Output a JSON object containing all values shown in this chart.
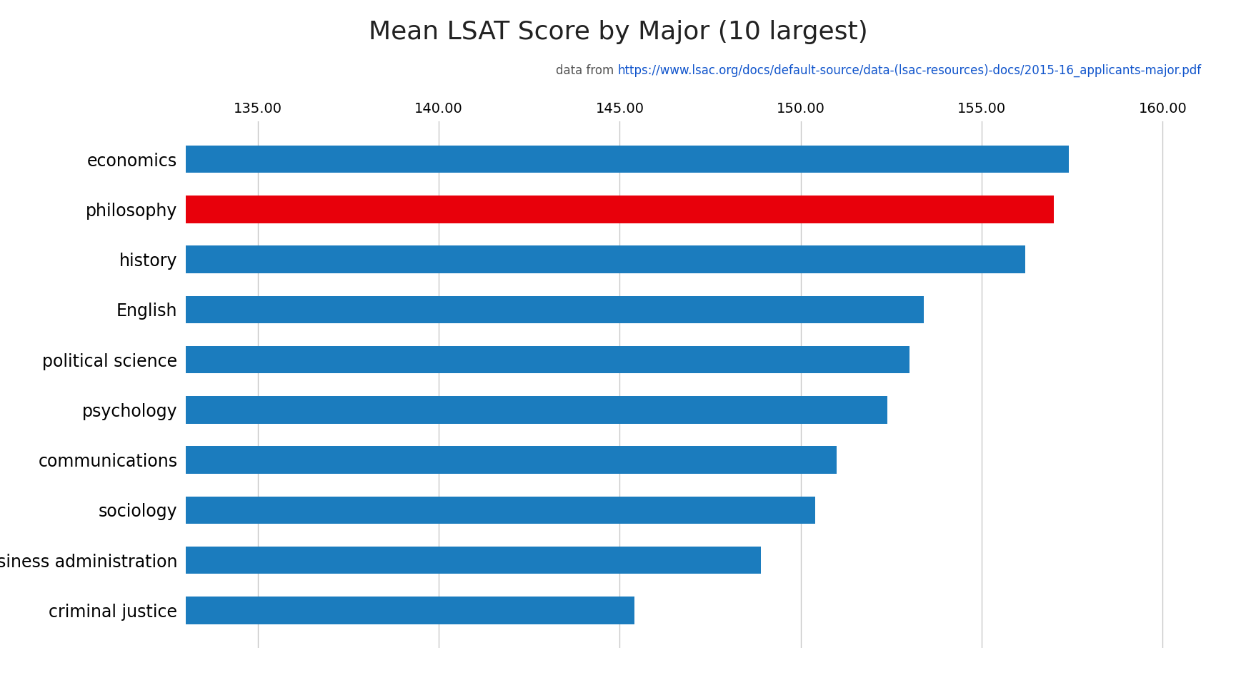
{
  "title": "Mean LSAT Score by Major (10 largest)",
  "subtitle_prefix": "data from ",
  "subtitle_link": "https://www.lsac.org/docs/default-source/data-(lsac-resources)-docs/2015-16_applicants-major.pdf",
  "categories": [
    "economics",
    "philosophy",
    "history",
    "English",
    "political science",
    "psychology",
    "communications",
    "sociology",
    "business administration",
    "criminal justice"
  ],
  "values": [
    157.4,
    157.0,
    156.2,
    153.4,
    153.0,
    152.4,
    151.0,
    150.4,
    148.9,
    145.4
  ],
  "bar_colors": [
    "#1b7cbe",
    "#e8000b",
    "#1b7cbe",
    "#1b7cbe",
    "#1b7cbe",
    "#1b7cbe",
    "#1b7cbe",
    "#1b7cbe",
    "#1b7cbe",
    "#1b7cbe"
  ],
  "xlim_left": 133.0,
  "xlim_right": 161.0,
  "xticks": [
    135.0,
    140.0,
    145.0,
    150.0,
    155.0,
    160.0
  ],
  "title_fontsize": 26,
  "subtitle_fontsize": 12,
  "ylabel_fontsize": 17,
  "tick_fontsize": 14,
  "bar_height": 0.55,
  "background_color": "#ffffff",
  "grid_color": "#c8c8c8",
  "link_color": "#1155CC"
}
